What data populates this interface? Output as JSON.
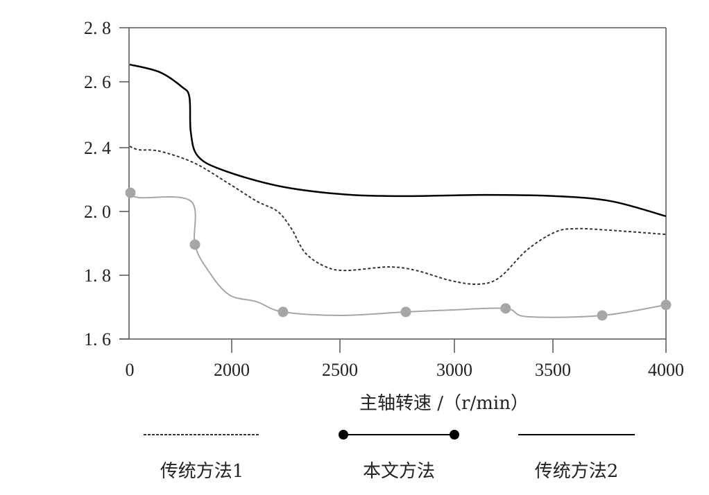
{
  "chart_data": {
    "type": "line",
    "title": "",
    "xlabel": "主轴转速 /（r/min）",
    "ylabel": "",
    "x_ticks": [
      0,
      2000,
      2500,
      3000,
      3500,
      4000
    ],
    "x_tick_labels": [
      "0",
      "2000",
      "2500",
      "3000",
      "3500",
      "4000"
    ],
    "y_ticks": [
      1.6,
      1.8,
      2.0,
      2.4,
      2.6,
      2.8
    ],
    "y_tick_labels": [
      "1. 6",
      "1. 8",
      "2. 0",
      "2. 4",
      "2. 6",
      "2. 8"
    ],
    "xlim": [
      0,
      4000
    ],
    "ylim": [
      1.6,
      2.8
    ],
    "grid": false,
    "legend_placement": "bottom",
    "series": [
      {
        "name": "传统方法1",
        "style": "dashed",
        "color": "#333333",
        "x": [
          0,
          177,
          585,
          1265,
          1946,
          2115,
          2212,
          2276,
          2340,
          2436,
          2530,
          2712,
          2833,
          2985,
          3123,
          3229,
          3370,
          3509,
          3601,
          3755,
          4000
        ],
        "y": [
          2.404,
          2.387,
          2.378,
          2.304,
          2.174,
          2.065,
          2.0,
          1.946,
          1.87,
          1.826,
          1.815,
          1.826,
          1.815,
          1.783,
          1.772,
          1.793,
          1.88,
          1.935,
          1.946,
          1.941,
          1.928
        ]
      },
      {
        "name": "本文方法",
        "style": "solid-markers",
        "color": "#a6a6a6",
        "x": [
          0,
          177,
          1197,
          1279,
          1537,
          1946,
          2115,
          2237,
          2500,
          2788,
          2985,
          3260,
          3370,
          3718,
          4000
        ],
        "y": [
          2.117,
          2.087,
          2.065,
          1.896,
          1.815,
          1.739,
          1.717,
          1.685,
          1.674,
          1.685,
          1.691,
          1.696,
          1.67,
          1.674,
          1.707
        ],
        "markers_x": [
          0,
          1279,
          2237,
          2788,
          3260,
          3718,
          4000
        ],
        "markers_y": [
          2.117,
          1.896,
          1.685,
          1.685,
          1.696,
          1.674,
          1.707
        ]
      },
      {
        "name": "传统方法2",
        "style": "solid",
        "color": "#000000",
        "x": [
          0,
          585,
          1020,
          1170,
          1197,
          1333,
          1810,
          2212,
          2500,
          2773,
          3158,
          3509,
          3755,
          4000
        ],
        "y": [
          2.664,
          2.636,
          2.585,
          2.554,
          2.448,
          2.348,
          2.261,
          2.161,
          2.109,
          2.096,
          2.104,
          2.096,
          2.065,
          1.985
        ]
      }
    ]
  }
}
